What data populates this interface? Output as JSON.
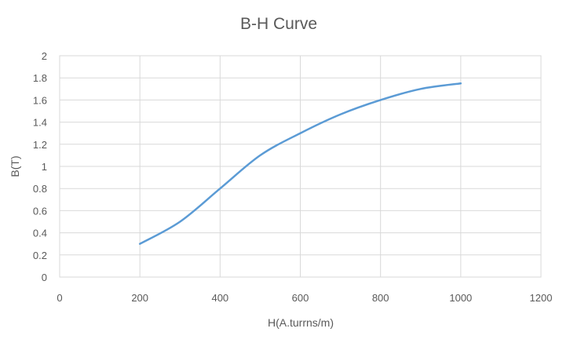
{
  "chart_data": {
    "type": "line",
    "title": "B-H Curve",
    "xlabel": "H(A.turrns/m)",
    "ylabel": "B(T)",
    "xlim": [
      0,
      1200
    ],
    "ylim": [
      0,
      2
    ],
    "x_ticks": [
      0,
      200,
      400,
      600,
      800,
      1000,
      1200
    ],
    "y_ticks": [
      0,
      0.2,
      0.4,
      0.6,
      0.8,
      1,
      1.2,
      1.4,
      1.6,
      1.8,
      2
    ],
    "x_tick_labels": [
      "0",
      "200",
      "400",
      "600",
      "800",
      "1000",
      "1200"
    ],
    "y_tick_labels": [
      "0",
      "0.2",
      "0.4",
      "0.6",
      "0.8",
      "1",
      "1.2",
      "1.4",
      "1.6",
      "1.8",
      "2"
    ],
    "grid": true,
    "legend": "none",
    "series": [
      {
        "x": [
          200,
          300,
          400,
          500,
          600,
          700,
          800,
          900,
          1000
        ],
        "y": [
          0.3,
          0.5,
          0.8,
          1.1,
          1.3,
          1.47,
          1.6,
          1.7,
          1.75
        ],
        "color": "#5B9BD5"
      }
    ]
  }
}
